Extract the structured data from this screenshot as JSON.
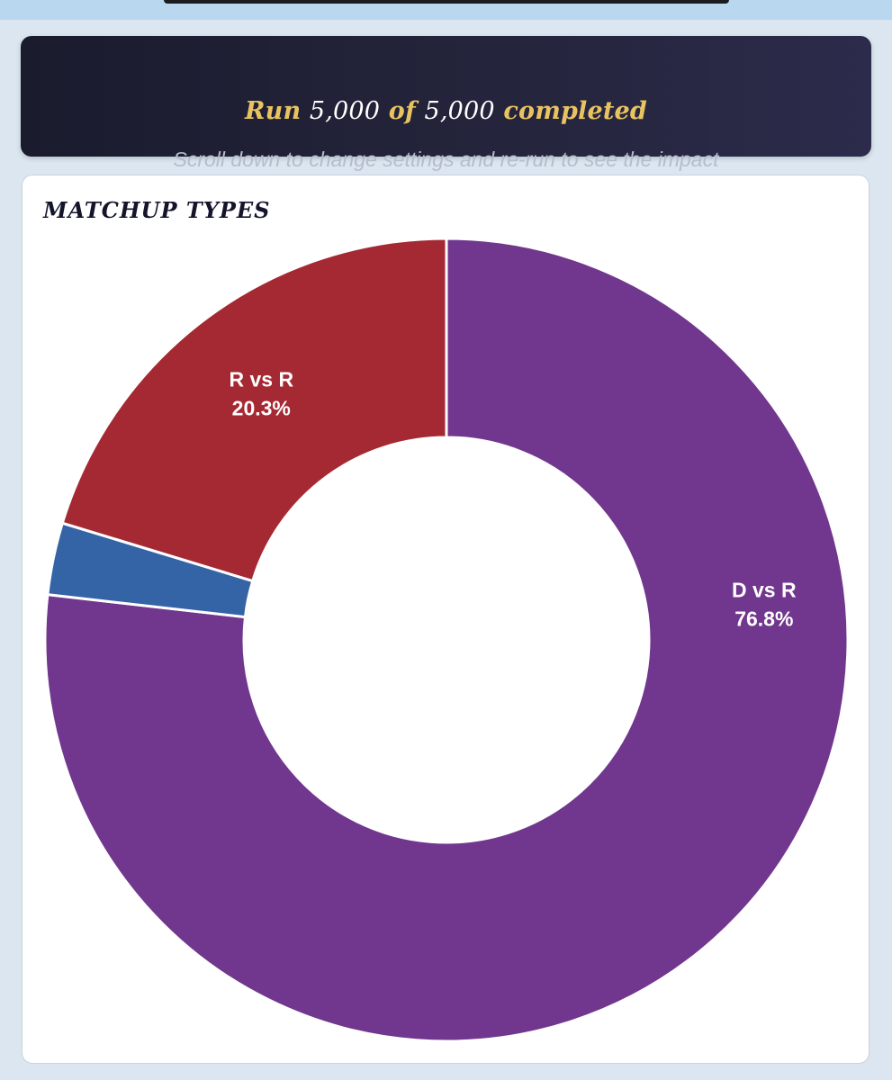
{
  "banner": {
    "run_word": "Run",
    "current": "5,000",
    "of_word": "of",
    "total": "5,000",
    "completed_word": "completed",
    "subtitle": "Scroll down to change settings and re-run to see the impact"
  },
  "chart_data": {
    "type": "pie",
    "style": "donut",
    "title": "MATCHUP TYPES",
    "legend": "none",
    "slices": [
      {
        "name": "D vs R",
        "value": 76.8,
        "label_value": "76.8%",
        "color": "#71368d"
      },
      {
        "name": "",
        "value": 2.9,
        "label_value": "",
        "color": "#3464a6"
      },
      {
        "name": "R vs R",
        "value": 20.3,
        "label_value": "20.3%",
        "color": "#a52932"
      }
    ]
  }
}
